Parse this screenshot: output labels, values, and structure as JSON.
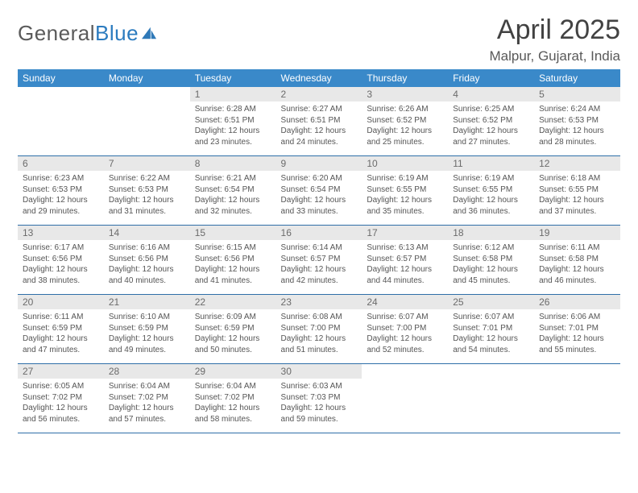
{
  "brand": {
    "name_gray": "General",
    "name_blue": "Blue"
  },
  "title": "April 2025",
  "location": "Malpur, Gujarat, India",
  "colors": {
    "header_bg": "#3a89c9",
    "header_text": "#ffffff",
    "daynum_bg": "#e8e8e8",
    "daynum_text": "#6b6b6b",
    "divider": "#2f6fa8",
    "body_text": "#555555",
    "title_text": "#424242"
  },
  "day_names": [
    "Sunday",
    "Monday",
    "Tuesday",
    "Wednesday",
    "Thursday",
    "Friday",
    "Saturday"
  ],
  "weeks": [
    [
      null,
      null,
      {
        "n": "1",
        "sr": "Sunrise: 6:28 AM",
        "ss": "Sunset: 6:51 PM",
        "dl": "Daylight: 12 hours and 23 minutes."
      },
      {
        "n": "2",
        "sr": "Sunrise: 6:27 AM",
        "ss": "Sunset: 6:51 PM",
        "dl": "Daylight: 12 hours and 24 minutes."
      },
      {
        "n": "3",
        "sr": "Sunrise: 6:26 AM",
        "ss": "Sunset: 6:52 PM",
        "dl": "Daylight: 12 hours and 25 minutes."
      },
      {
        "n": "4",
        "sr": "Sunrise: 6:25 AM",
        "ss": "Sunset: 6:52 PM",
        "dl": "Daylight: 12 hours and 27 minutes."
      },
      {
        "n": "5",
        "sr": "Sunrise: 6:24 AM",
        "ss": "Sunset: 6:53 PM",
        "dl": "Daylight: 12 hours and 28 minutes."
      }
    ],
    [
      {
        "n": "6",
        "sr": "Sunrise: 6:23 AM",
        "ss": "Sunset: 6:53 PM",
        "dl": "Daylight: 12 hours and 29 minutes."
      },
      {
        "n": "7",
        "sr": "Sunrise: 6:22 AM",
        "ss": "Sunset: 6:53 PM",
        "dl": "Daylight: 12 hours and 31 minutes."
      },
      {
        "n": "8",
        "sr": "Sunrise: 6:21 AM",
        "ss": "Sunset: 6:54 PM",
        "dl": "Daylight: 12 hours and 32 minutes."
      },
      {
        "n": "9",
        "sr": "Sunrise: 6:20 AM",
        "ss": "Sunset: 6:54 PM",
        "dl": "Daylight: 12 hours and 33 minutes."
      },
      {
        "n": "10",
        "sr": "Sunrise: 6:19 AM",
        "ss": "Sunset: 6:55 PM",
        "dl": "Daylight: 12 hours and 35 minutes."
      },
      {
        "n": "11",
        "sr": "Sunrise: 6:19 AM",
        "ss": "Sunset: 6:55 PM",
        "dl": "Daylight: 12 hours and 36 minutes."
      },
      {
        "n": "12",
        "sr": "Sunrise: 6:18 AM",
        "ss": "Sunset: 6:55 PM",
        "dl": "Daylight: 12 hours and 37 minutes."
      }
    ],
    [
      {
        "n": "13",
        "sr": "Sunrise: 6:17 AM",
        "ss": "Sunset: 6:56 PM",
        "dl": "Daylight: 12 hours and 38 minutes."
      },
      {
        "n": "14",
        "sr": "Sunrise: 6:16 AM",
        "ss": "Sunset: 6:56 PM",
        "dl": "Daylight: 12 hours and 40 minutes."
      },
      {
        "n": "15",
        "sr": "Sunrise: 6:15 AM",
        "ss": "Sunset: 6:56 PM",
        "dl": "Daylight: 12 hours and 41 minutes."
      },
      {
        "n": "16",
        "sr": "Sunrise: 6:14 AM",
        "ss": "Sunset: 6:57 PM",
        "dl": "Daylight: 12 hours and 42 minutes."
      },
      {
        "n": "17",
        "sr": "Sunrise: 6:13 AM",
        "ss": "Sunset: 6:57 PM",
        "dl": "Daylight: 12 hours and 44 minutes."
      },
      {
        "n": "18",
        "sr": "Sunrise: 6:12 AM",
        "ss": "Sunset: 6:58 PM",
        "dl": "Daylight: 12 hours and 45 minutes."
      },
      {
        "n": "19",
        "sr": "Sunrise: 6:11 AM",
        "ss": "Sunset: 6:58 PM",
        "dl": "Daylight: 12 hours and 46 minutes."
      }
    ],
    [
      {
        "n": "20",
        "sr": "Sunrise: 6:11 AM",
        "ss": "Sunset: 6:59 PM",
        "dl": "Daylight: 12 hours and 47 minutes."
      },
      {
        "n": "21",
        "sr": "Sunrise: 6:10 AM",
        "ss": "Sunset: 6:59 PM",
        "dl": "Daylight: 12 hours and 49 minutes."
      },
      {
        "n": "22",
        "sr": "Sunrise: 6:09 AM",
        "ss": "Sunset: 6:59 PM",
        "dl": "Daylight: 12 hours and 50 minutes."
      },
      {
        "n": "23",
        "sr": "Sunrise: 6:08 AM",
        "ss": "Sunset: 7:00 PM",
        "dl": "Daylight: 12 hours and 51 minutes."
      },
      {
        "n": "24",
        "sr": "Sunrise: 6:07 AM",
        "ss": "Sunset: 7:00 PM",
        "dl": "Daylight: 12 hours and 52 minutes."
      },
      {
        "n": "25",
        "sr": "Sunrise: 6:07 AM",
        "ss": "Sunset: 7:01 PM",
        "dl": "Daylight: 12 hours and 54 minutes."
      },
      {
        "n": "26",
        "sr": "Sunrise: 6:06 AM",
        "ss": "Sunset: 7:01 PM",
        "dl": "Daylight: 12 hours and 55 minutes."
      }
    ],
    [
      {
        "n": "27",
        "sr": "Sunrise: 6:05 AM",
        "ss": "Sunset: 7:02 PM",
        "dl": "Daylight: 12 hours and 56 minutes."
      },
      {
        "n": "28",
        "sr": "Sunrise: 6:04 AM",
        "ss": "Sunset: 7:02 PM",
        "dl": "Daylight: 12 hours and 57 minutes."
      },
      {
        "n": "29",
        "sr": "Sunrise: 6:04 AM",
        "ss": "Sunset: 7:02 PM",
        "dl": "Daylight: 12 hours and 58 minutes."
      },
      {
        "n": "30",
        "sr": "Sunrise: 6:03 AM",
        "ss": "Sunset: 7:03 PM",
        "dl": "Daylight: 12 hours and 59 minutes."
      },
      null,
      null,
      null
    ]
  ]
}
